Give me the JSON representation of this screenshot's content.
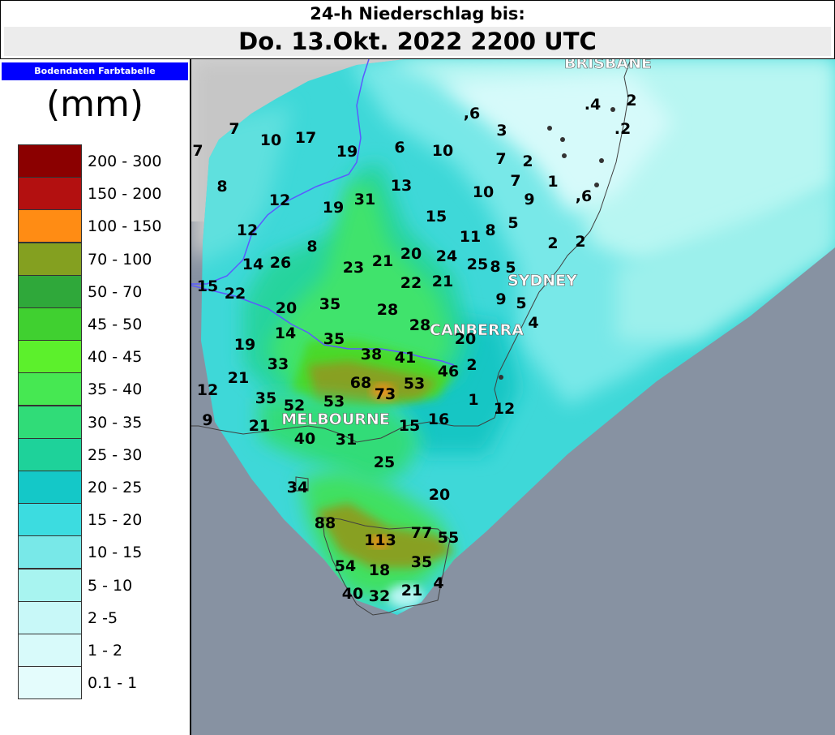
{
  "header": {
    "title_line1": "24-h Niederschlag bis:",
    "title_line2": "Do. 13.Okt. 2022 2200 UTC"
  },
  "legend": {
    "title": "Bodendaten Farbtabelle",
    "unit": "(mm)",
    "entries": [
      {
        "label": "200 - 300",
        "color": "#8b0000"
      },
      {
        "label": "150 - 200",
        "color": "#b31010"
      },
      {
        "label": "100 - 150",
        "color": "#ff8c14"
      },
      {
        "label": "70 - 100",
        "color": "#84a020"
      },
      {
        "label": "50 - 70",
        "color": "#2fa83a"
      },
      {
        "label": "45 - 50",
        "color": "#40d030"
      },
      {
        "label": "40 - 45",
        "color": "#5cf02c"
      },
      {
        "label": "35 - 40",
        "color": "#46e852"
      },
      {
        "label": "30 - 35",
        "color": "#30dc78"
      },
      {
        "label": "25 - 30",
        "color": "#1ed29a"
      },
      {
        "label": "20 - 25",
        "color": "#14c8c8"
      },
      {
        "label": "15 - 20",
        "color": "#3cdce0"
      },
      {
        "label": "10 - 15",
        "color": "#78e8e8"
      },
      {
        "label": "5 - 10",
        "color": "#a8f4f0"
      },
      {
        "label": "2 -5",
        "color": "#c8f8f8"
      },
      {
        "label": "1 - 2",
        "color": "#d8fafa"
      },
      {
        "label": "0.1 - 1",
        "color": "#e4fcfc"
      }
    ]
  },
  "map": {
    "colors": {
      "ocean": "#8792a2",
      "land_dry": "#d4d4d4",
      "border": "#5a5aff",
      "coast": "#404040"
    },
    "cities": [
      "BRISBANE",
      "SYDNEY",
      "CANBERRA",
      "MELBOURNE"
    ],
    "values": [
      "7",
      "10",
      "17",
      "19",
      "6",
      "10",
      ",6",
      "3",
      ".4",
      "2",
      ".2",
      "7",
      "2",
      "7",
      "1",
      "7",
      "8",
      "12",
      "19",
      "31",
      "13",
      "10",
      "9",
      ",6",
      "12",
      "15",
      "11",
      "8",
      "5",
      "8",
      "2",
      "2",
      "14",
      "26",
      "23",
      "21",
      "20",
      "24",
      "25",
      "8",
      "5",
      "15",
      "22",
      "20",
      "35",
      "22",
      "21",
      "28",
      "9",
      "5",
      "19",
      "14",
      "35",
      "28",
      "20",
      "4",
      "38",
      "41",
      "46",
      "2",
      "33",
      "12",
      "21",
      "68",
      "73",
      "53",
      "1",
      "35",
      "52",
      "53",
      "15",
      "16",
      "12",
      "9",
      "21",
      "40",
      "31",
      "25",
      "34",
      "20",
      "88",
      "113",
      "77",
      "55",
      "54",
      "18",
      "35",
      "40",
      "32",
      "21",
      "4"
    ]
  }
}
